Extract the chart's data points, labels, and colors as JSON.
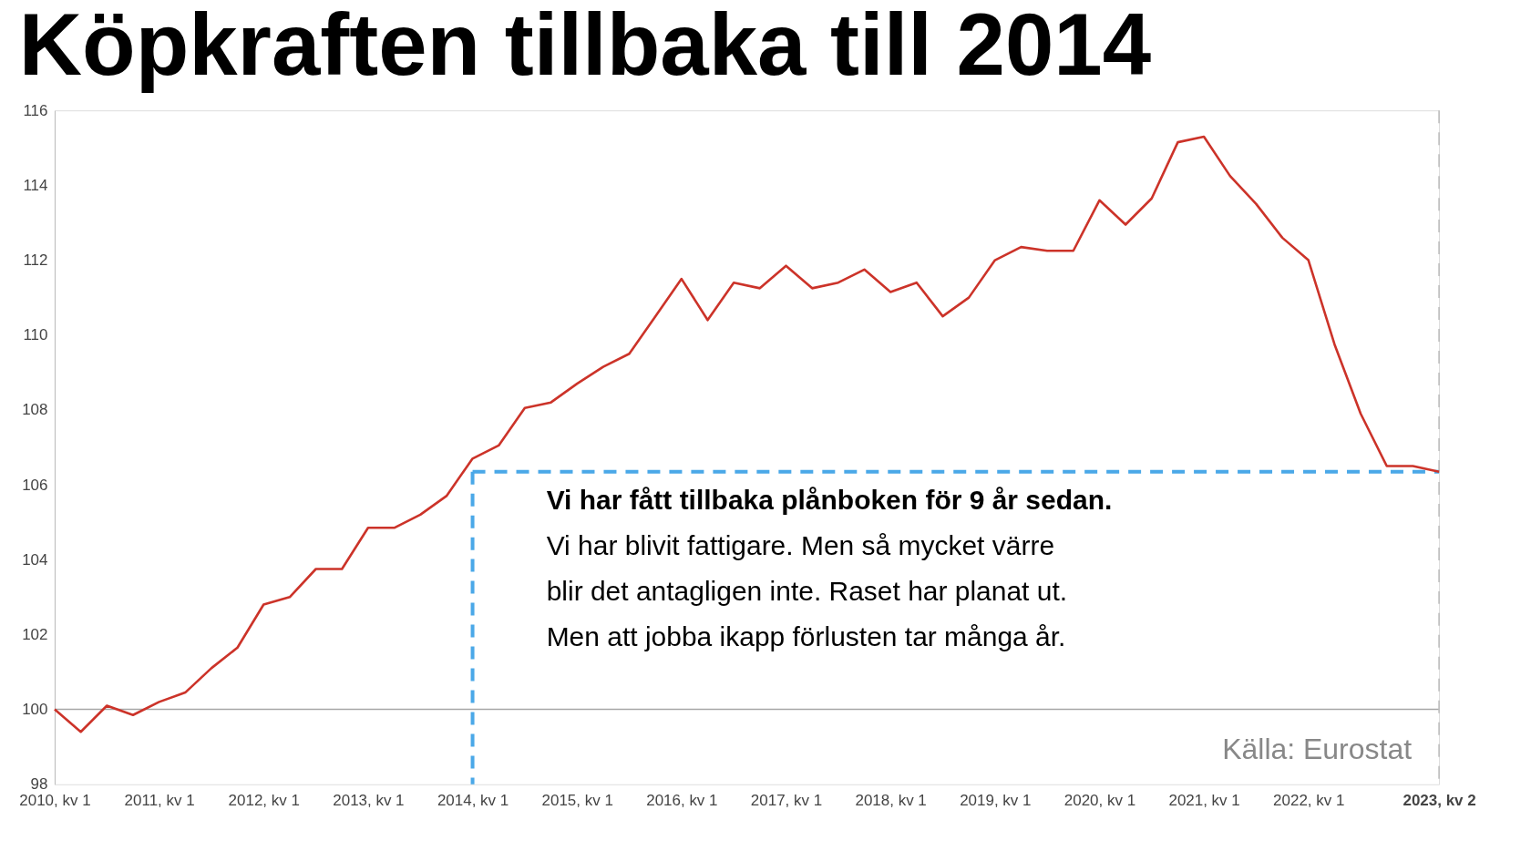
{
  "chart_data": {
    "type": "line",
    "title": "Köpkraften tillbaka till 2014",
    "categories": [
      "2010, kv 1",
      null,
      null,
      null,
      "2011, kv 1",
      null,
      null,
      null,
      "2012, kv 1",
      null,
      null,
      null,
      "2013, kv 1",
      null,
      null,
      null,
      "2014, kv 1",
      null,
      null,
      null,
      "2015, kv 1",
      null,
      null,
      null,
      "2016, kv 1",
      null,
      null,
      null,
      "2017, kv 1",
      null,
      null,
      null,
      "2018, kv 1",
      null,
      null,
      null,
      "2019, kv 1",
      null,
      null,
      null,
      "2020, kv 1",
      null,
      null,
      null,
      "2021, kv 1",
      null,
      null,
      null,
      "2022, kv 1",
      null,
      null,
      null,
      null,
      "2023, kv 2"
    ],
    "series": [
      {
        "color": "#cc3329",
        "values": [
          100,
          99.4,
          100.1,
          99.85,
          100.2,
          100.45,
          101.1,
          101.65,
          102.8,
          103.0,
          103.75,
          103.75,
          104.85,
          104.85,
          105.2,
          105.7,
          106.7,
          107.05,
          108.05,
          108.2,
          108.7,
          109.15,
          109.5,
          110.5,
          111.5,
          110.4,
          111.4,
          111.25,
          111.85,
          111.25,
          111.4,
          111.75,
          111.15,
          111.4,
          110.5,
          111.0,
          112.0,
          112.35,
          112.25,
          112.25,
          113.6,
          112.95,
          113.65,
          115.15,
          115.3,
          114.25,
          113.5,
          112.6,
          112.0,
          109.75,
          107.9,
          106.5,
          106.5,
          106.35
        ]
      }
    ],
    "ylim": [
      98,
      116
    ],
    "yticks": [
      98,
      100,
      102,
      104,
      106,
      108,
      110,
      112,
      114,
      116
    ],
    "grid": false,
    "marker": "none",
    "line_style": "solid",
    "ref_lines": [
      {
        "axis": "y",
        "value": 100,
        "color": "#a6a6a6",
        "line_style": "solid"
      },
      {
        "axis": "x",
        "value": "2014, kv 1",
        "color": "#4aa8e8",
        "line_style": "dashed"
      },
      {
        "axis": "y",
        "value": 106.35,
        "color": "#4aa8e8",
        "line_style": "dashed"
      },
      {
        "axis": "x",
        "value": "2023, kv 2",
        "color": "#bbbbbb",
        "line_style": "dashed"
      }
    ],
    "annotations": [
      "Vi har fått tillbaka plånboken för 9 år sedan.",
      "Vi har blivit fattigare. Men så mycket värre",
      "blir det antagligen inte. Raset har planat ut.",
      "Men att jobba ikapp förlusten tar många år.",
      "Källa: Eurostat"
    ]
  }
}
